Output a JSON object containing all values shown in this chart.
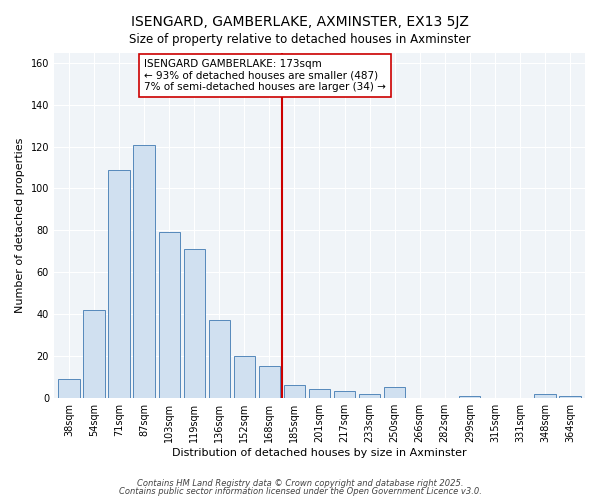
{
  "title": "ISENGARD, GAMBERLAKE, AXMINSTER, EX13 5JZ",
  "subtitle": "Size of property relative to detached houses in Axminster",
  "xlabel": "Distribution of detached houses by size in Axminster",
  "ylabel": "Number of detached properties",
  "bar_color": "#d0e0f0",
  "bar_edge_color": "#5588bb",
  "background_color": "#ffffff",
  "plot_background": "#f0f4f8",
  "grid_color": "#ffffff",
  "categories": [
    "38sqm",
    "54sqm",
    "71sqm",
    "87sqm",
    "103sqm",
    "119sqm",
    "136sqm",
    "152sqm",
    "168sqm",
    "185sqm",
    "201sqm",
    "217sqm",
    "233sqm",
    "250sqm",
    "266sqm",
    "282sqm",
    "299sqm",
    "315sqm",
    "331sqm",
    "348sqm",
    "364sqm"
  ],
  "values": [
    9,
    42,
    109,
    121,
    79,
    71,
    37,
    20,
    15,
    6,
    4,
    3,
    2,
    5,
    0,
    0,
    1,
    0,
    0,
    2,
    1
  ],
  "annotation_line1": "ISENGARD GAMBERLAKE: 173sqm",
  "annotation_line2": "← 93% of detached houses are smaller (487)",
  "annotation_line3": "7% of semi-detached houses are larger (34) →",
  "annotation_box_color": "#ffffff",
  "annotation_border_color": "#cc0000",
  "vline_color": "#cc0000",
  "vline_x_index": 8,
  "ylim_max": 165,
  "footer1": "Contains HM Land Registry data © Crown copyright and database right 2025.",
  "footer2": "Contains public sector information licensed under the Open Government Licence v3.0.",
  "title_fontsize": 10,
  "subtitle_fontsize": 8.5,
  "axis_label_fontsize": 8,
  "tick_fontsize": 7,
  "annotation_fontsize": 7.5,
  "footer_fontsize": 6
}
